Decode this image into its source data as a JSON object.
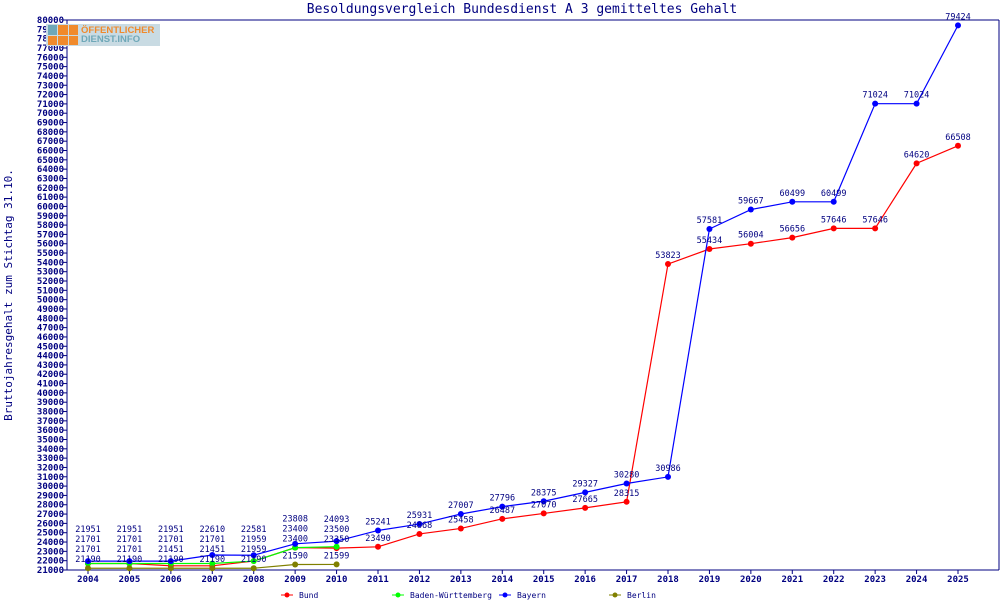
{
  "logo_text": "ÖFFENTLICHER DIENST.INFO",
  "chart_data": {
    "type": "line",
    "title": "Besoldungsvergleich Bundesdienst A 3 gemitteltes Gehalt",
    "xlabel": "",
    "ylabel": "Bruttojahresgehalt zum Stichtag 31.10.",
    "ylim": [
      21000,
      80000
    ],
    "ytick_step": 1000,
    "x": [
      2004,
      2005,
      2006,
      2007,
      2008,
      2009,
      2010,
      2011,
      2012,
      2013,
      2014,
      2015,
      2016,
      2017,
      2018,
      2019,
      2020,
      2021,
      2022,
      2023,
      2024,
      2025
    ],
    "legend_position": "bottom",
    "series": [
      {
        "name": "Bund",
        "color": "#ff0000",
        "values": [
          21701,
          21701,
          21451,
          21451,
          21959,
          23400,
          23350,
          23490,
          24868,
          25458,
          26487,
          27070,
          27665,
          28315,
          53823,
          55434,
          56004,
          56656,
          57646,
          57646,
          64620,
          66508
        ]
      },
      {
        "name": "Baden-Württemberg",
        "color": "#00ff00",
        "values": [
          21701,
          21701,
          21701,
          21701,
          21959,
          23400,
          23500,
          null,
          null,
          null,
          null,
          null,
          null,
          null,
          null,
          null,
          null,
          null,
          null,
          null,
          null,
          null
        ]
      },
      {
        "name": "Bayern",
        "color": "#0000ff",
        "values": [
          21951,
          21951,
          21951,
          22610,
          22581,
          23808,
          24093,
          25241,
          25931,
          27007,
          27796,
          28375,
          29327,
          30280,
          30986,
          57581,
          59667,
          60499,
          60499,
          71024,
          71024,
          79424
        ]
      },
      {
        "name": "Berlin",
        "color": "#808000",
        "values": [
          21190,
          21190,
          21190,
          21190,
          21190,
          21590,
          21599,
          null,
          null,
          null,
          null,
          null,
          null,
          null,
          null,
          null,
          null,
          null,
          null,
          null,
          null,
          null
        ]
      }
    ]
  }
}
